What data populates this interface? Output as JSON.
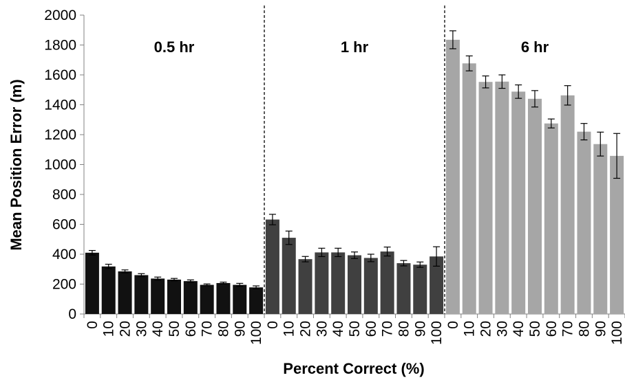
{
  "chart_data": {
    "type": "bar",
    "title": "",
    "xlabel": "Percent Correct (%)",
    "ylabel": "Mean Position Error (m)",
    "ylim": [
      0,
      2000
    ],
    "y_ticks": [
      0,
      200,
      400,
      600,
      800,
      1000,
      1200,
      1400,
      1600,
      1800,
      2000
    ],
    "grid": false,
    "legend": "none",
    "categories": [
      "0",
      "10",
      "20",
      "30",
      "40",
      "50",
      "60",
      "70",
      "80",
      "90",
      "100"
    ],
    "groups": [
      {
        "label": "0.5 hr",
        "color": "#111111",
        "values": [
          410,
          318,
          285,
          260,
          237,
          230,
          220,
          195,
          207,
          195,
          178
        ],
        "errors": [
          15,
          15,
          10,
          10,
          10,
          8,
          8,
          6,
          6,
          10,
          10
        ]
      },
      {
        "label": "1 hr",
        "color": "#404040",
        "values": [
          632,
          510,
          367,
          412,
          412,
          393,
          375,
          418,
          340,
          330,
          385
        ],
        "errors": [
          35,
          45,
          18,
          28,
          28,
          22,
          25,
          30,
          18,
          18,
          65
        ]
      },
      {
        "label": "6 hr",
        "color": "#a6a6a6",
        "values": [
          1835,
          1677,
          1553,
          1555,
          1488,
          1440,
          1275,
          1463,
          1220,
          1137,
          1058
        ],
        "errors": [
          60,
          50,
          40,
          45,
          45,
          55,
          30,
          65,
          55,
          80,
          150
        ]
      }
    ]
  }
}
